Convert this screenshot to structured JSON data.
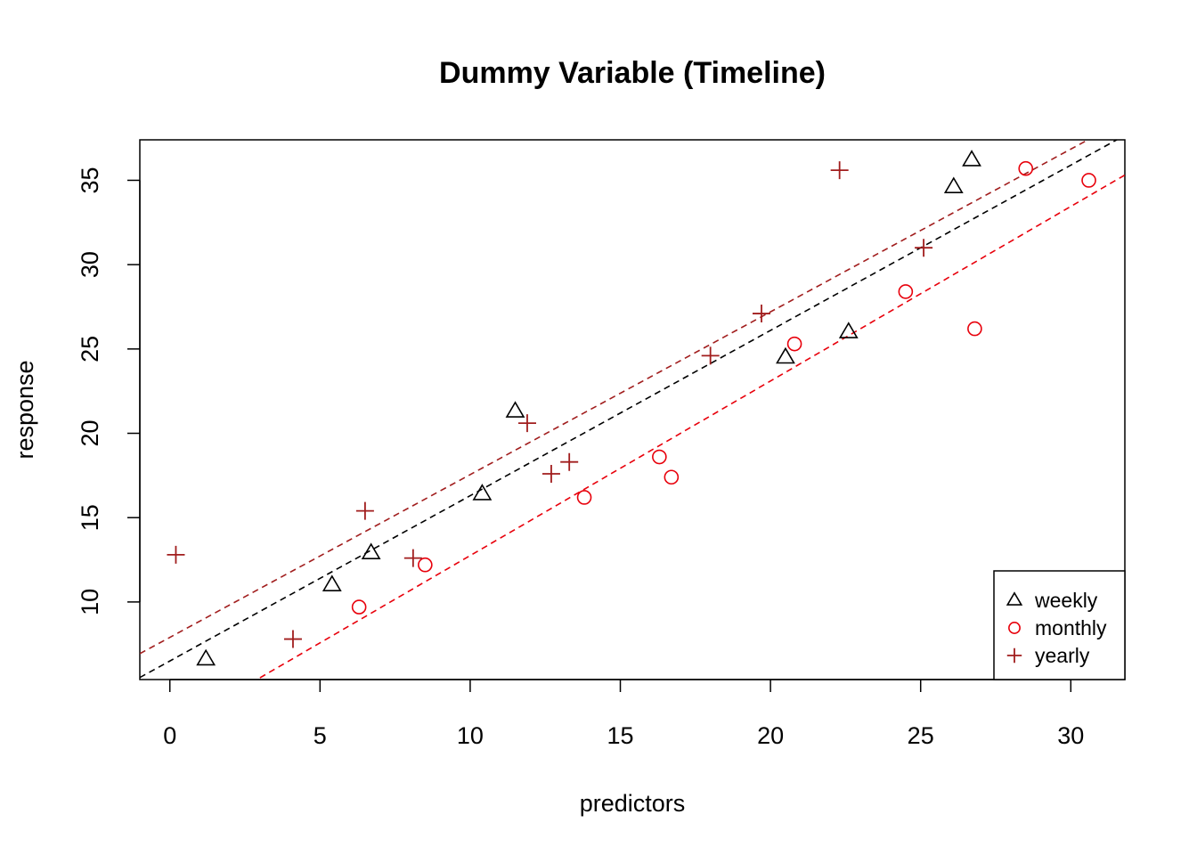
{
  "chart_data": {
    "type": "scatter",
    "title": "Dummy Variable (Timeline)",
    "xlabel": "predictors",
    "ylabel": "response",
    "xlim": [
      -1.0,
      31.8
    ],
    "ylim": [
      5.4,
      37.4
    ],
    "xticks": [
      0,
      5,
      10,
      15,
      20,
      25,
      30
    ],
    "yticks": [
      10,
      15,
      20,
      25,
      30,
      35
    ],
    "grid": false,
    "legend_position": "bottom-right",
    "series": [
      {
        "name": "weekly",
        "marker": "triangle",
        "color": "#000000",
        "points": [
          [
            1.2,
            6.6
          ],
          [
            5.4,
            11.0
          ],
          [
            6.7,
            12.9
          ],
          [
            10.4,
            16.4
          ],
          [
            11.5,
            21.3
          ],
          [
            20.5,
            24.5
          ],
          [
            22.6,
            26.0
          ],
          [
            26.1,
            34.6
          ],
          [
            26.7,
            36.2
          ]
        ],
        "fit": {
          "intercept": 6.5,
          "slope": 0.98,
          "color": "#000000"
        }
      },
      {
        "name": "monthly",
        "marker": "circle",
        "color": "#e8000b",
        "points": [
          [
            6.3,
            9.7
          ],
          [
            8.5,
            12.2
          ],
          [
            13.8,
            16.2
          ],
          [
            16.3,
            18.6
          ],
          [
            16.7,
            17.4
          ],
          [
            20.8,
            25.3
          ],
          [
            24.5,
            28.4
          ],
          [
            26.8,
            26.2
          ],
          [
            28.5,
            35.7
          ],
          [
            30.6,
            35.0
          ]
        ],
        "fit": {
          "intercept": 2.4,
          "slope": 1.035,
          "color": "#e8000b"
        }
      },
      {
        "name": "yearly",
        "marker": "plus",
        "color": "#a11d1d",
        "points": [
          [
            0.2,
            12.8
          ],
          [
            4.1,
            7.8
          ],
          [
            6.5,
            15.4
          ],
          [
            8.1,
            12.6
          ],
          [
            11.9,
            20.6
          ],
          [
            12.7,
            17.6
          ],
          [
            13.3,
            18.3
          ],
          [
            18.0,
            24.6
          ],
          [
            19.7,
            27.1
          ],
          [
            22.3,
            35.6
          ],
          [
            25.1,
            31.0
          ]
        ],
        "fit": {
          "intercept": 7.9,
          "slope": 0.965,
          "color": "#a11d1d"
        }
      }
    ]
  }
}
